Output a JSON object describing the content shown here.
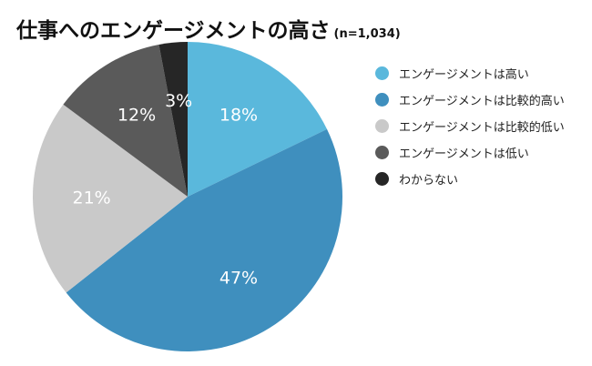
{
  "title": "仕事へのエンゲージメントの高さ",
  "sample_note": "(n=1,034)",
  "chart_data": {
    "type": "pie",
    "start_angle_deg": 0,
    "direction": "clockwise",
    "slices": [
      {
        "name": "エンゲージメントは高い",
        "value": 18,
        "label": "18%",
        "color": "#5ab8dc"
      },
      {
        "name": "エンゲージメントは比較的高い",
        "value": 47,
        "label": "47%",
        "color": "#3f8fbe"
      },
      {
        "name": "エンゲージメントは比較的低い",
        "value": 21,
        "label": "21%",
        "color": "#c9c9c9"
      },
      {
        "name": "エンゲージメントは低い",
        "value": 12,
        "label": "12%",
        "color": "#5a5a5a"
      },
      {
        "name": "わからない",
        "value": 3,
        "label": "3%",
        "color": "#262626"
      }
    ],
    "legend_position": "right"
  }
}
